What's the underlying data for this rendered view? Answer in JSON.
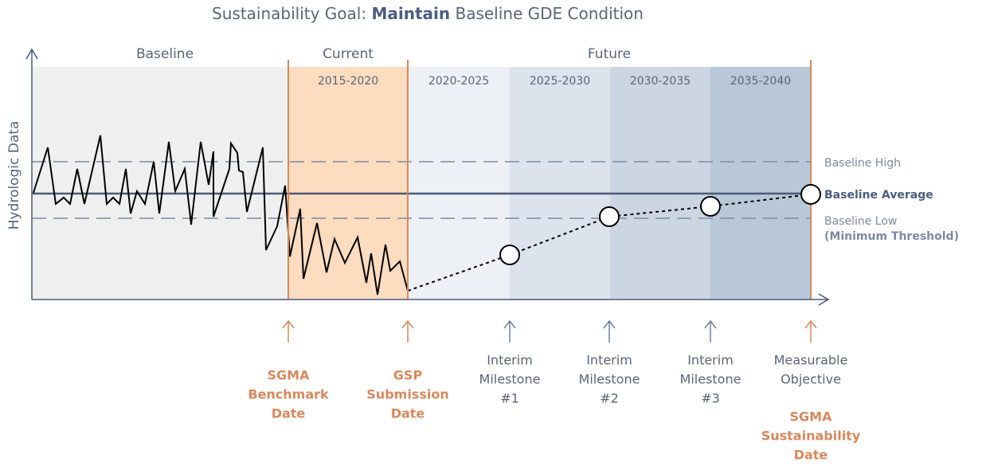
{
  "title": {
    "prefix": "Sustainability Goal:",
    "emphasis": "Maintain",
    "suffix": "Baseline GDE Condition"
  },
  "y_axis_label": "Hydrologic Data",
  "phases": [
    "Baseline",
    "Current",
    "Future"
  ],
  "periods": [
    "2015-2020",
    "2020-2025",
    "2025-2030",
    "2030-2035",
    "2035-2040"
  ],
  "reference_lines": {
    "high": "Baseline High",
    "average": "Baseline Average",
    "low": "Baseline Low",
    "low_note": "(Minimum Threshold)"
  },
  "milestones": [
    {
      "label": [
        "SGMA",
        "Benchmark",
        "Date"
      ]
    },
    {
      "label": [
        "GSP",
        "Submission",
        "Date"
      ]
    },
    {
      "label": [
        "Interim",
        "Milestone",
        "#1"
      ]
    },
    {
      "label": [
        "Interim",
        "Milestone",
        "#2"
      ]
    },
    {
      "label": [
        "Interim",
        "Milestone",
        "#3"
      ]
    },
    {
      "label": [
        "Measurable",
        "Objective"
      ],
      "date_label": [
        "SGMA",
        "Sustainability",
        "Date"
      ]
    }
  ]
}
